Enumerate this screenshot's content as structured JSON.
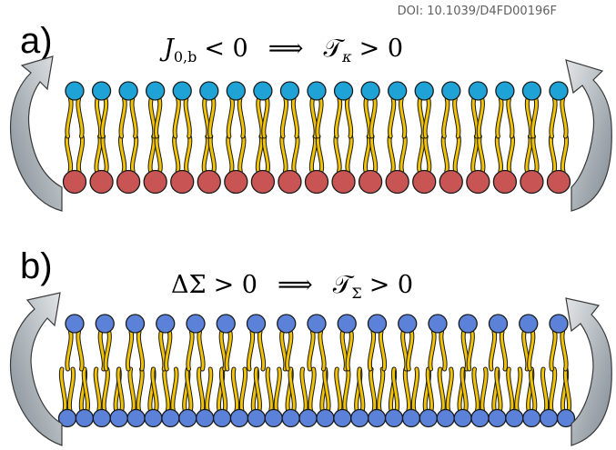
{
  "doi": "DOI: 10.1039/D4FD00196F",
  "panels": [
    {
      "label": "a)",
      "equation": {
        "lhs_symbol": "J",
        "lhs_subscript": "0,b",
        "lhs_relation": "< 0",
        "implies": "⟹",
        "rhs_symbol": "𝒯",
        "rhs_subscript": "κ",
        "rhs_relation": "> 0"
      },
      "top_leaflet": {
        "lipid_count": 19,
        "head_color": "#1fa3d6"
      },
      "bottom_leaflet": {
        "lipid_count": 19,
        "head_color": "#c95454"
      },
      "tail_color": "#f2c300"
    },
    {
      "label": "b)",
      "equation": {
        "lhs_symbol": "ΔΣ",
        "lhs_relation": "> 0",
        "implies": "⟹",
        "rhs_symbol": "𝒯",
        "rhs_subscript": "Σ",
        "rhs_relation": "> 0"
      },
      "top_leaflet": {
        "lipid_count": 17,
        "head_color": "#5b82d8"
      },
      "bottom_leaflet": {
        "lipid_count": 30,
        "head_color": "#5b82d8"
      },
      "tail_color": "#f2c300"
    }
  ],
  "colors": {
    "arrow_fill": "#9aa4ab",
    "arrow_fill_light": "#d4d8db",
    "outline": "#1a1a1a"
  }
}
